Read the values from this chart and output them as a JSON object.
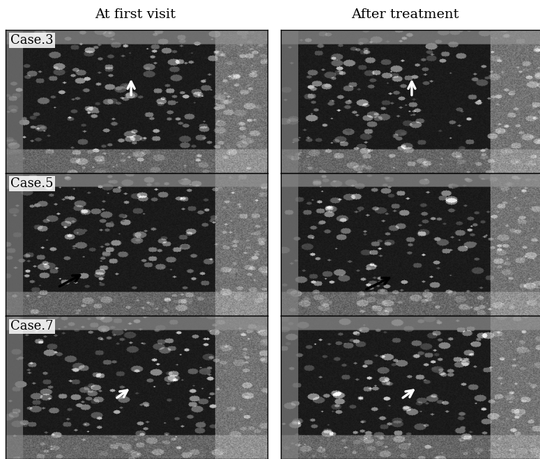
{
  "col_headers": [
    "At first visit",
    "After treatment"
  ],
  "row_labels": [
    "Case.3",
    "Case.5",
    "Case.7"
  ],
  "arrow_colors": [
    "white",
    "black",
    "white"
  ],
  "arrow_positions": [
    [
      [
        0.47,
        0.38
      ],
      [
        0.47,
        0.38
      ]
    ],
    [
      [
        0.25,
        0.78
      ],
      [
        0.42,
        0.78
      ]
    ],
    [
      [
        0.44,
        0.6
      ],
      [
        0.47,
        0.6
      ]
    ]
  ],
  "bg_color": "#ffffff",
  "label_fontsize": 13,
  "header_fontsize": 14,
  "fig_width": 7.75,
  "fig_height": 6.6,
  "dpi": 100
}
